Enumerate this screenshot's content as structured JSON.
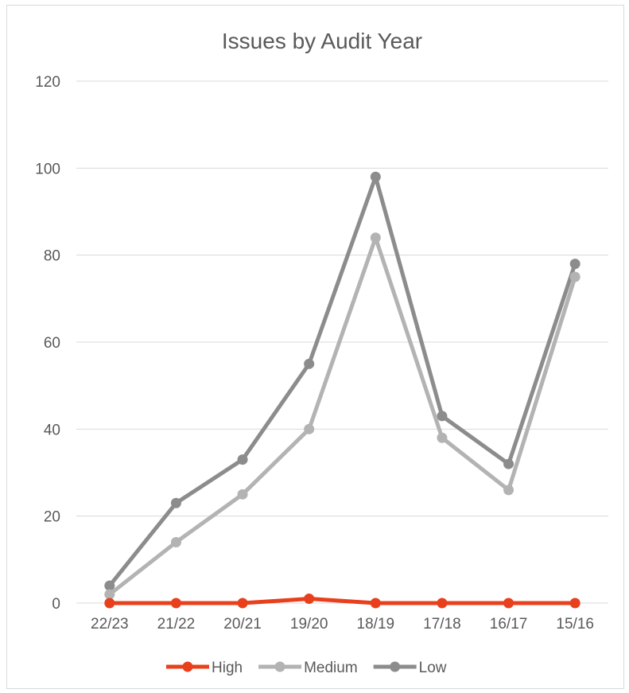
{
  "chart_data": {
    "type": "line",
    "title": "Issues by Audit Year",
    "xlabel": "",
    "ylabel": "",
    "categories": [
      "22/23",
      "21/22",
      "20/21",
      "19/20",
      "18/19",
      "17/18",
      "16/17",
      "15/16"
    ],
    "ylim": [
      0,
      120
    ],
    "yticks": [
      0,
      20,
      40,
      60,
      80,
      100,
      120
    ],
    "grid": true,
    "legend_position": "bottom",
    "series": [
      {
        "name": "High",
        "color": "#E8401C",
        "values": [
          0,
          0,
          0,
          1,
          0,
          0,
          0,
          0
        ]
      },
      {
        "name": "Medium",
        "color": "#B3B3B3",
        "values": [
          2,
          14,
          25,
          40,
          84,
          38,
          26,
          75
        ]
      },
      {
        "name": "Low",
        "color": "#8C8C8C",
        "values": [
          4,
          23,
          33,
          55,
          98,
          43,
          32,
          78
        ]
      }
    ]
  }
}
